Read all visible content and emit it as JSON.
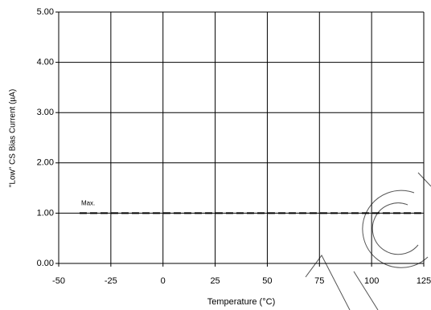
{
  "chart_data": {
    "type": "line",
    "x_label": "Temperature (°C)",
    "y_label": "\"Low\" CS Bias Current (µA)",
    "annotation": "Max.",
    "x": [
      -40,
      125
    ],
    "series": [
      {
        "color": "#000000",
        "dashed": true,
        "values": [
          1,
          1
        ]
      }
    ],
    "xlim": [
      -50,
      125
    ],
    "xticks": [
      -50,
      -25,
      0,
      25,
      50,
      75,
      100,
      125
    ],
    "ylim": [
      0,
      5
    ],
    "yticks": [
      {
        "value": 0,
        "label": "0.00"
      },
      {
        "value": 1,
        "label": "1.00"
      },
      {
        "value": 2,
        "label": "2.00"
      },
      {
        "value": 3,
        "label": "3.00"
      },
      {
        "value": 4,
        "label": "4.00"
      },
      {
        "value": 5,
        "label": "5.00"
      }
    ],
    "grid": true
  }
}
